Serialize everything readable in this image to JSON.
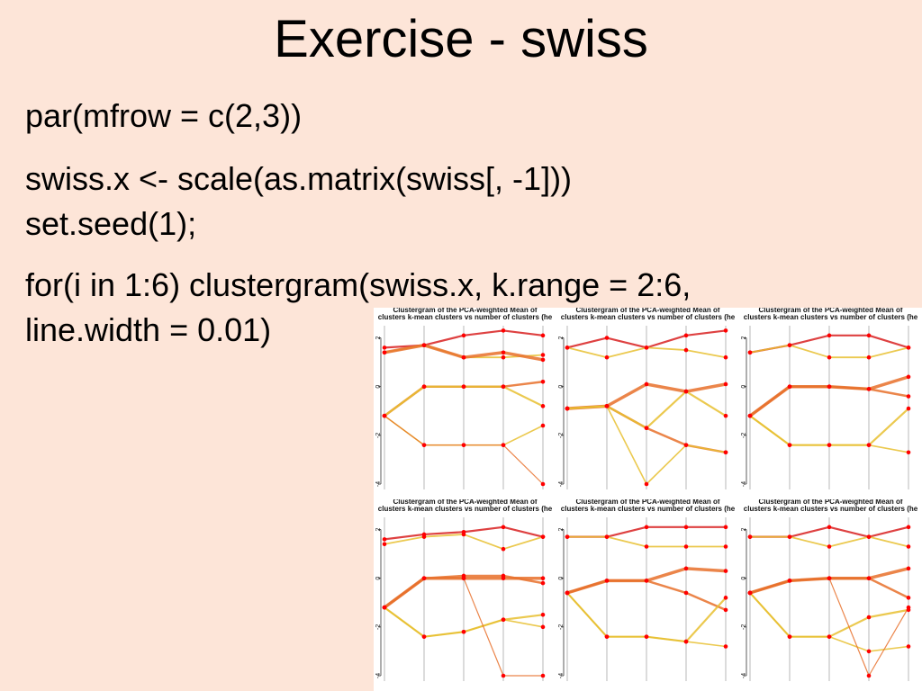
{
  "slide": {
    "title": "Exercise - swiss",
    "code_lines": [
      "par(mfrow = c(2,3))",
      "swiss.x <- scale(as.matrix(swiss[, -1]))",
      "set.seed(1);",
      "for(i in 1:6) clustergram(swiss.x, k.range = 2:6,",
      "line.width = 0.01)"
    ]
  },
  "plots": {
    "title": "Clustergram of the PCA-weighted Mean of",
    "subtitle": "clusters k-mean clusters vs number of clusters (he",
    "y_ticks": [
      "2",
      "0",
      "-2",
      "-4"
    ],
    "colors": {
      "high": "#d82020",
      "mid": "#e8702a",
      "low": "#e8c030",
      "point": "#ff0000"
    }
  },
  "chart_data": [
    {
      "type": "line",
      "x": [
        2,
        3,
        4,
        5,
        6
      ],
      "ylim": [
        -4,
        2.5
      ],
      "series": [
        {
          "values": [
            1.6,
            1.7,
            2.1,
            2.3,
            2.1
          ]
        },
        {
          "values": [
            1.4,
            1.7,
            1.2,
            1.2,
            1.3
          ]
        },
        {
          "values": [
            1.4,
            1.7,
            1.2,
            1.4,
            1.1
          ]
        },
        {
          "values": [
            -1.2,
            0,
            0,
            0,
            0.2
          ]
        },
        {
          "values": [
            -1.2,
            0,
            0,
            0,
            -0.8
          ]
        },
        {
          "values": [
            -1.2,
            -2.4,
            -2.4,
            -2.4,
            -1.6
          ]
        },
        {
          "values": [
            -1.2,
            -2.4,
            -2.4,
            -2.4,
            -4
          ]
        }
      ]
    },
    {
      "type": "line",
      "x": [
        2,
        3,
        4,
        5,
        6
      ],
      "ylim": [
        -4,
        2.5
      ],
      "series": [
        {
          "values": [
            1.6,
            2.0,
            1.6,
            2.1,
            2.3
          ]
        },
        {
          "values": [
            1.6,
            1.2,
            1.6,
            1.5,
            1.2
          ]
        },
        {
          "values": [
            -0.9,
            -0.8,
            0.1,
            -0.2,
            0.1
          ]
        },
        {
          "values": [
            -0.9,
            -0.8,
            -1.7,
            -2.4,
            -2.7
          ]
        },
        {
          "values": [
            -0.9,
            -0.8,
            -1.7,
            -0.2,
            -1.2
          ]
        },
        {
          "values": [
            -0.9,
            -0.8,
            -4,
            -2.4,
            -2.7
          ]
        }
      ]
    },
    {
      "type": "line",
      "x": [
        2,
        3,
        4,
        5,
        6
      ],
      "ylim": [
        -4,
        2.5
      ],
      "series": [
        {
          "values": [
            1.4,
            1.7,
            2.1,
            2.1,
            1.6
          ]
        },
        {
          "values": [
            1.4,
            1.7,
            1.2,
            1.2,
            1.6
          ]
        },
        {
          "values": [
            -1.2,
            0,
            0,
            -0.1,
            0.4
          ]
        },
        {
          "values": [
            -1.2,
            0,
            0,
            -0.1,
            -0.4
          ]
        },
        {
          "values": [
            -1.2,
            -2.4,
            -2.4,
            -2.4,
            -0.9
          ]
        },
        {
          "values": [
            -1.2,
            -2.4,
            -2.4,
            -2.4,
            -2.7
          ]
        }
      ]
    },
    {
      "type": "line",
      "x": [
        2,
        3,
        4,
        5,
        6
      ],
      "ylim": [
        -4,
        2.5
      ],
      "series": [
        {
          "values": [
            1.6,
            1.8,
            1.9,
            2.1,
            1.7
          ]
        },
        {
          "values": [
            1.4,
            1.7,
            1.8,
            1.2,
            1.7
          ]
        },
        {
          "values": [
            -1.2,
            0,
            0,
            0,
            0
          ]
        },
        {
          "values": [
            -1.2,
            0,
            0.1,
            0.1,
            -0.2
          ]
        },
        {
          "values": [
            -1.2,
            -2.4,
            -2.2,
            -1.7,
            -1.5
          ]
        },
        {
          "values": [
            -1.2,
            -2.4,
            -2.2,
            -1.7,
            -2
          ]
        },
        {
          "values": [
            -1.2,
            0,
            0,
            -4,
            -4
          ]
        }
      ]
    },
    {
      "type": "line",
      "x": [
        2,
        3,
        4,
        5,
        6
      ],
      "ylim": [
        -4,
        2.5
      ],
      "series": [
        {
          "values": [
            1.7,
            1.7,
            2.1,
            2.1,
            2.1
          ]
        },
        {
          "values": [
            1.7,
            1.7,
            1.3,
            1.3,
            1.3
          ]
        },
        {
          "values": [
            -0.6,
            -0.1,
            -0.1,
            0.4,
            0.3
          ]
        },
        {
          "values": [
            -0.6,
            -0.1,
            -0.1,
            -0.6,
            -1.3
          ]
        },
        {
          "values": [
            -0.6,
            -2.4,
            -2.4,
            -2.6,
            -0.8
          ]
        },
        {
          "values": [
            -0.6,
            -2.4,
            -2.4,
            -2.6,
            -2.8
          ]
        }
      ]
    },
    {
      "type": "line",
      "x": [
        2,
        3,
        4,
        5,
        6
      ],
      "ylim": [
        -4,
        2.5
      ],
      "series": [
        {
          "values": [
            1.7,
            1.7,
            2.1,
            1.7,
            2.1
          ]
        },
        {
          "values": [
            1.7,
            1.7,
            1.3,
            1.7,
            1.3
          ]
        },
        {
          "values": [
            -0.6,
            -0.1,
            0,
            0,
            0.4
          ]
        },
        {
          "values": [
            -0.6,
            -0.1,
            0,
            0,
            -0.8
          ]
        },
        {
          "values": [
            -0.6,
            -2.4,
            -2.4,
            -1.6,
            -1.3
          ]
        },
        {
          "values": [
            -0.6,
            -2.4,
            -2.4,
            -3,
            -2.8
          ]
        },
        {
          "values": [
            -0.6,
            -0.1,
            0,
            -4,
            -1.2
          ]
        }
      ]
    }
  ]
}
